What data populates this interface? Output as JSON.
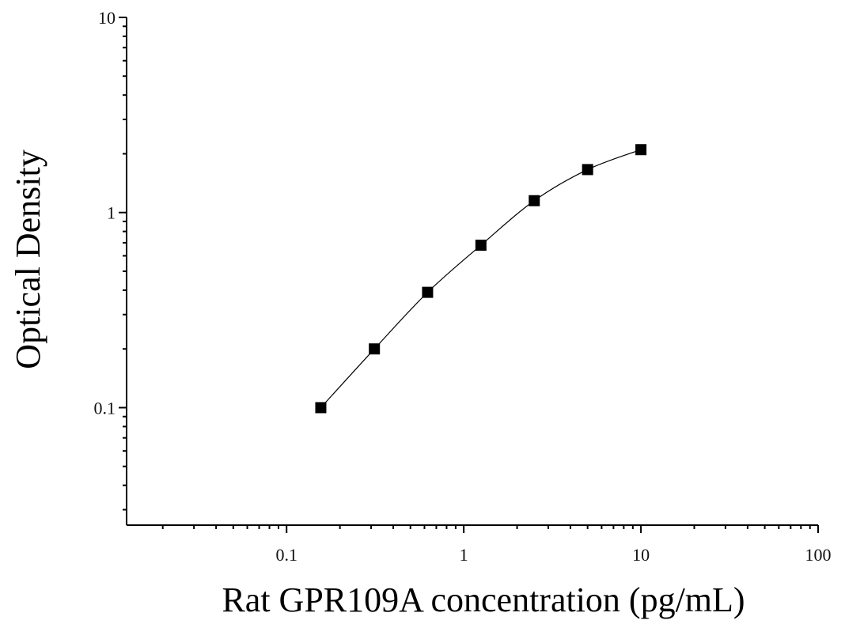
{
  "chart_data": {
    "type": "scatter",
    "xlabel": "Rat GPR109A concentration (pg/mL)",
    "ylabel": "Optical Density",
    "x_scale": "log",
    "y_scale": "log",
    "xlim": [
      0.0125,
      100
    ],
    "ylim": [
      0.025,
      10
    ],
    "x_tick_labels": [
      "0.1",
      "1",
      "10",
      "100"
    ],
    "y_tick_labels": [
      "0.1",
      "1",
      "10"
    ],
    "grid": false,
    "legend": "none",
    "fit_line": "smooth curve through points",
    "series": [
      {
        "x": [
          0.156,
          0.313,
          0.625,
          1.25,
          2.5,
          5,
          10
        ],
        "y": [
          0.1,
          0.2,
          0.39,
          0.68,
          1.15,
          1.66,
          2.1
        ]
      }
    ],
    "colors": {
      "marker": "#000000",
      "line": "#000000",
      "axes": "#000000"
    }
  }
}
